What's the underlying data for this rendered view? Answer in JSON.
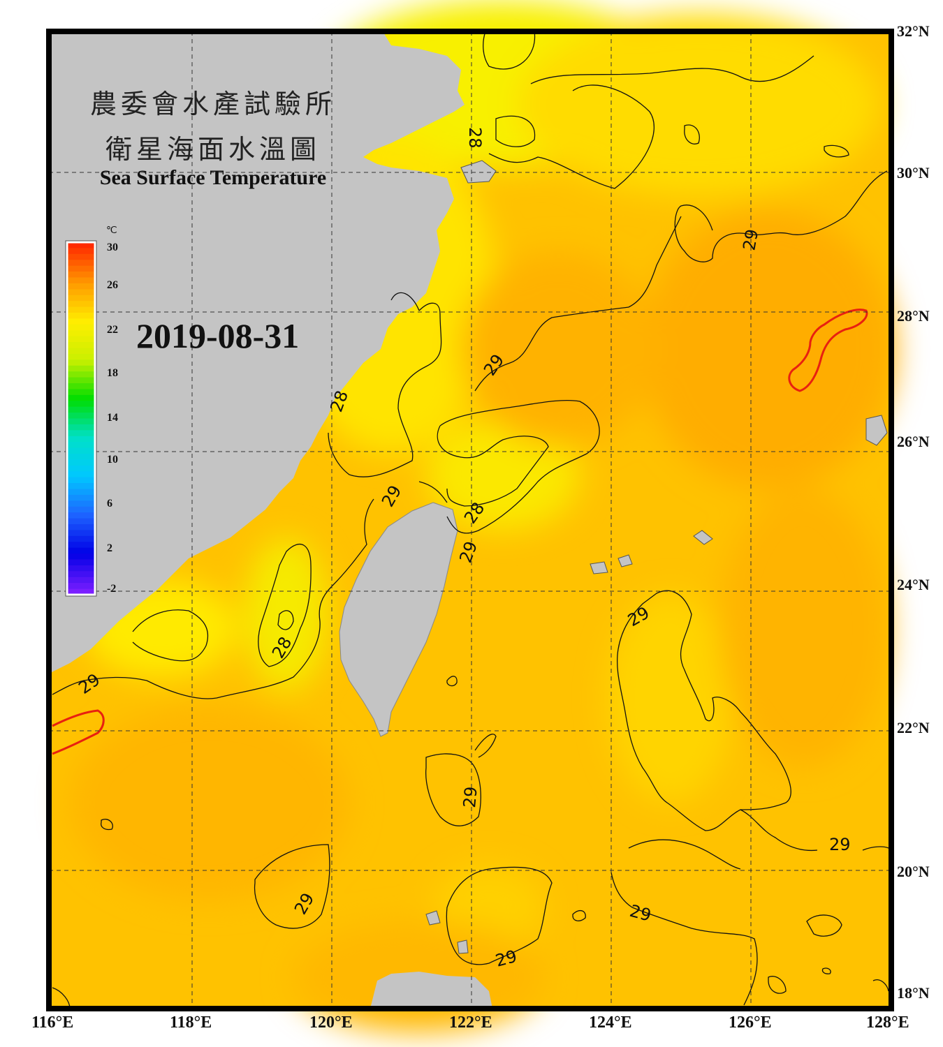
{
  "title": {
    "line1": "農委會水產試驗所",
    "line2": "衛星海面水溫圖",
    "english": "Sea Surface Temperature"
  },
  "date": "2019-08-31",
  "colorbar": {
    "unit": "℃",
    "ticks": [
      "30",
      "26",
      "22",
      "18",
      "14",
      "10",
      "6",
      "2",
      "-2"
    ],
    "colors": [
      "#ff2a00",
      "#ff9a00",
      "#ffee00",
      "#c8f000",
      "#00dd00",
      "#00e0c8",
      "#00c8ff",
      "#1e64ff",
      "#0000e6",
      "#7a1eff"
    ]
  },
  "lat_labels": [
    "32°N",
    "30°N",
    "28°N",
    "26°N",
    "24°N",
    "22°N",
    "20°N",
    "18°N"
  ],
  "lon_labels": [
    "116°E",
    "118°E",
    "120°E",
    "122°E",
    "124°E",
    "126°E",
    "128°E"
  ],
  "contour_labels": [
    "28",
    "28",
    "28",
    "28",
    "29",
    "29",
    "29",
    "29",
    "29",
    "29",
    "29",
    "29",
    "29",
    "29",
    "29"
  ],
  "colors": {
    "land": "#c4c4c4",
    "sea_warm": "#ffc400",
    "sea_cool": "#ffee00",
    "hot_contour": "#e82010",
    "frame": "#000000"
  }
}
